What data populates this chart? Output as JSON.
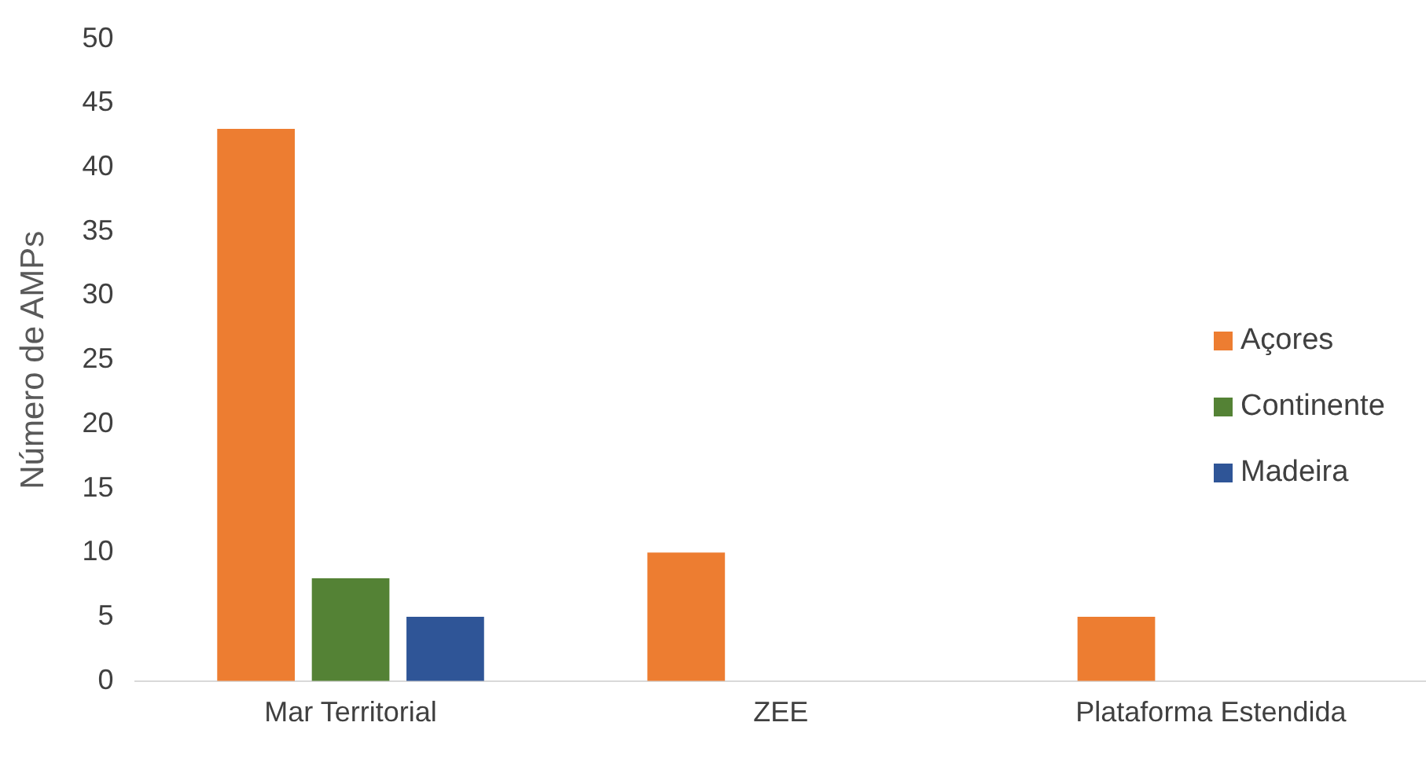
{
  "chart_data": {
    "type": "bar",
    "ylabel": "Número de AMPs",
    "categories": [
      "Mar Territorial",
      "ZEE",
      "Plataforma Estendida"
    ],
    "series": [
      {
        "name": "Açores",
        "color": "#ed7d31",
        "values": [
          43,
          10,
          5
        ]
      },
      {
        "name": "Continente",
        "color": "#548235",
        "values": [
          8,
          0,
          0
        ]
      },
      {
        "name": "Madeira",
        "color": "#2f5597",
        "values": [
          5,
          0,
          0
        ]
      }
    ],
    "ylim": [
      0,
      50
    ],
    "yticks": [
      0,
      5,
      10,
      15,
      20,
      25,
      30,
      35,
      40,
      45,
      50
    ],
    "grid": false,
    "legend": "right"
  }
}
